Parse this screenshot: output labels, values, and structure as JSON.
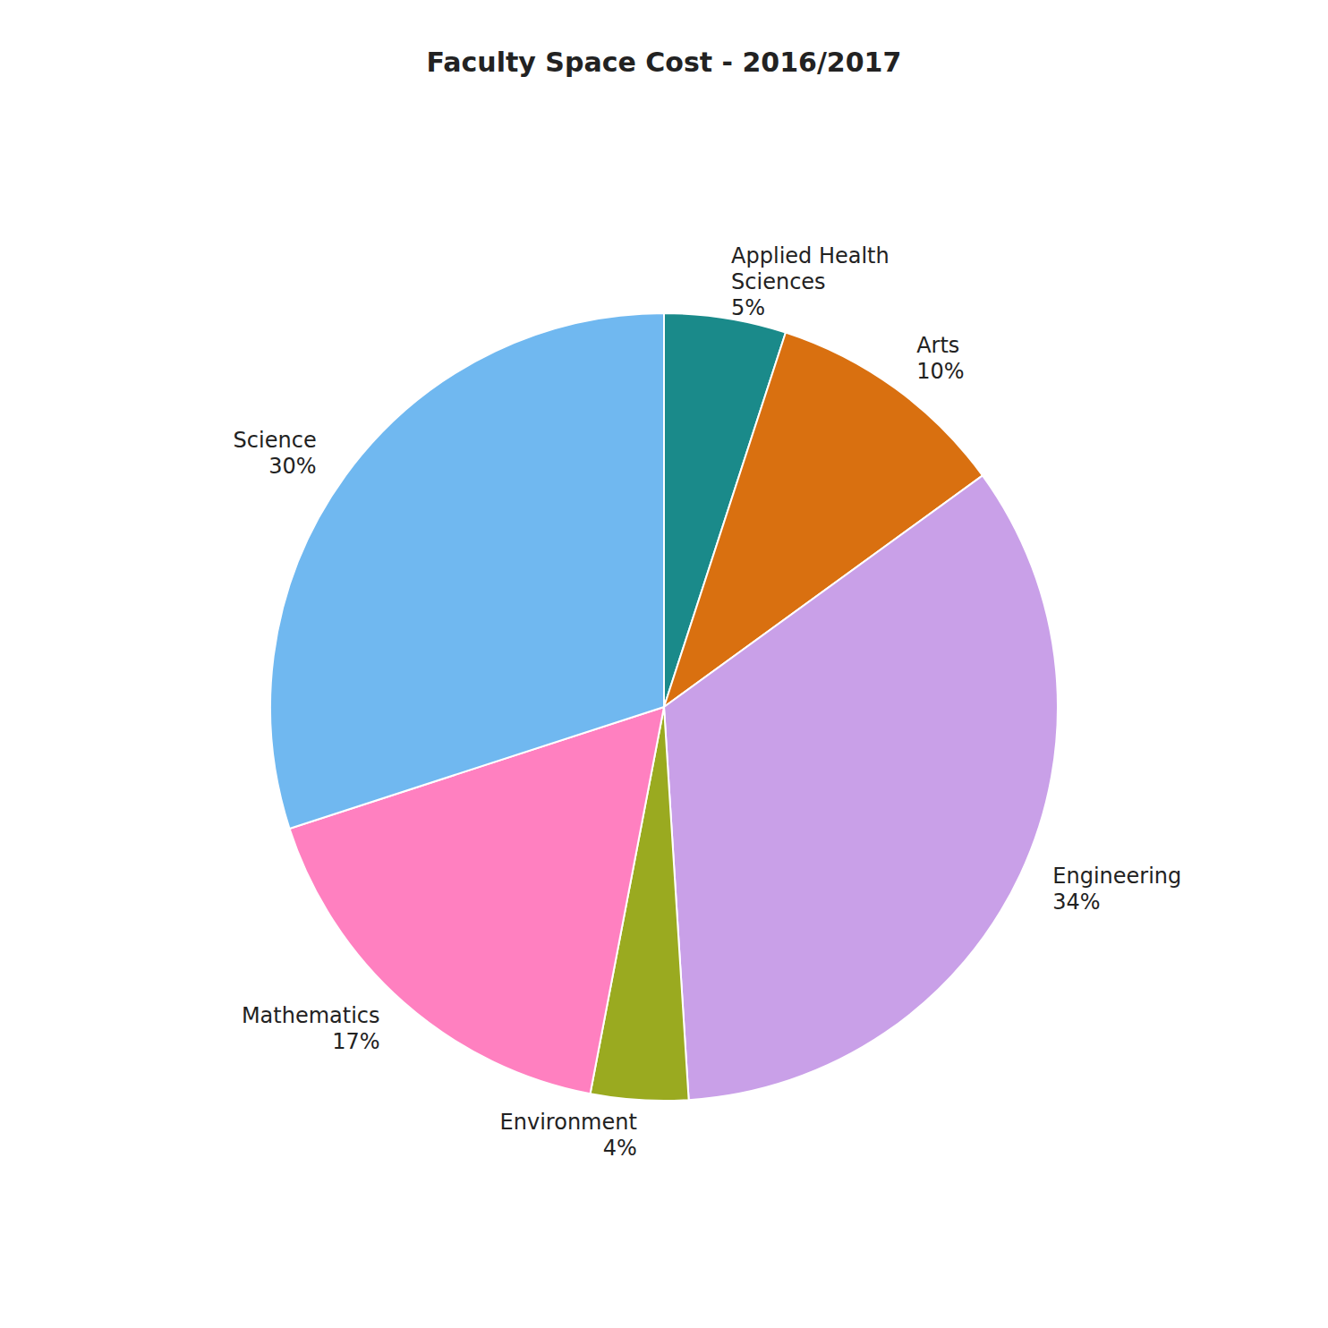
{
  "chart_data": {
    "type": "pie",
    "title": "Faculty Space Cost - 2016/2017",
    "categories": [
      "Applied Health\nSciences",
      "Arts",
      "Engineering",
      "Environment",
      "Mathematics",
      "Science"
    ],
    "values": [
      5,
      10,
      34,
      4,
      17,
      30
    ],
    "value_labels": [
      "5%",
      "10%",
      "34%",
      "4%",
      "17%",
      "30%"
    ],
    "colors": [
      "#1a8a8a",
      "#d97010",
      "#c9a0e8",
      "#9aaa20",
      "#ff80c0",
      "#70b8f0"
    ],
    "data_labels": true
  }
}
